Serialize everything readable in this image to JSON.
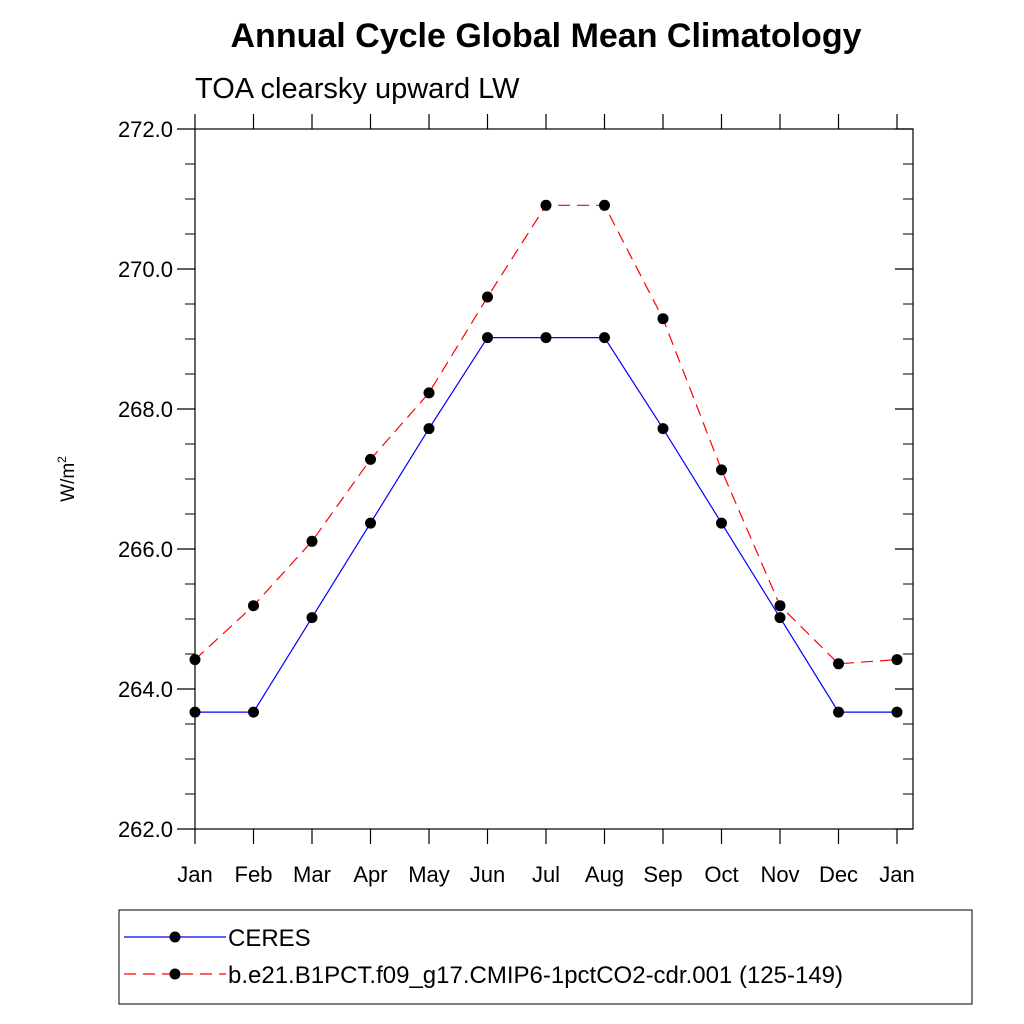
{
  "chart_data": {
    "type": "line",
    "title": "Annual Cycle Global Mean Climatology",
    "subtitle": "TOA clearsky upward LW",
    "ylabel_base": "W/m",
    "ylabel_sup": "2",
    "xlabel": "",
    "ylim": [
      262.0,
      272.0
    ],
    "yticks": [
      262.0,
      264.0,
      266.0,
      268.0,
      270.0,
      272.0
    ],
    "ytick_labels": [
      "262.0",
      "264.0",
      "266.0",
      "268.0",
      "270.0",
      "272.0"
    ],
    "categories": [
      "Jan",
      "Feb",
      "Mar",
      "Apr",
      "May",
      "Jun",
      "Jul",
      "Aug",
      "Sep",
      "Oct",
      "Nov",
      "Dec",
      "Jan"
    ],
    "legend_position": "bottom",
    "series": [
      {
        "name": "CERES",
        "color": "#0000ff",
        "dash": "solid",
        "values": [
          263.67,
          263.67,
          265.02,
          266.37,
          267.72,
          269.02,
          269.02,
          269.02,
          267.72,
          266.37,
          265.02,
          263.67,
          263.67
        ]
      },
      {
        "name": "b.e21.B1PCT.f09_g17.CMIP6-1pctCO2-cdr.001 (125-149)",
        "color": "#ff0000",
        "dash": "dashed",
        "values": [
          264.42,
          265.19,
          266.11,
          267.28,
          268.23,
          269.6,
          270.91,
          270.91,
          269.29,
          267.13,
          265.19,
          264.36,
          264.42
        ]
      }
    ]
  }
}
